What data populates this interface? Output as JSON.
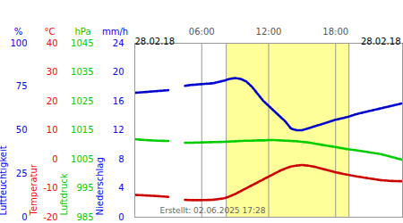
{
  "chart_data": {
    "type": "line",
    "date_labels": [
      "28.02.18",
      "28.02.18"
    ],
    "caption": "Erstellt: 02.06.2025 17:28",
    "xlim": [
      0,
      24
    ],
    "xticks": [
      {
        "value": 6,
        "label": "06:00"
      },
      {
        "value": 12,
        "label": "12:00"
      },
      {
        "value": 18,
        "label": "18:00"
      }
    ],
    "grid": "x",
    "daylight": [
      8.2,
      19.2
    ],
    "x": [
      0,
      1,
      2,
      3,
      3.6,
      4.5,
      5,
      6,
      7,
      8,
      8.5,
      9,
      9.5,
      10,
      10.5,
      11,
      11.5,
      12,
      12.5,
      13,
      13.5,
      14,
      14.5,
      15,
      15.5,
      16,
      17,
      18,
      19,
      20,
      21,
      22,
      23,
      24
    ],
    "axes": [
      {
        "axis": "y",
        "unit": "%",
        "label": "Luftfeuchtigkeit",
        "color": "#0000ff",
        "lim": [
          0,
          100
        ],
        "ticks": [
          0,
          25,
          50,
          75,
          100
        ]
      },
      {
        "axis": "y2",
        "unit": "°C",
        "label": "Temperatur",
        "color": "#ff0000",
        "lim": [
          -20,
          40
        ],
        "ticks": [
          -20,
          -10,
          0,
          10,
          20,
          30,
          40
        ]
      },
      {
        "axis": "y3",
        "unit": "hPa",
        "label": "Luftdruck",
        "color": "#00cc00",
        "lim": [
          985,
          1045
        ],
        "ticks": [
          985,
          995,
          1005,
          1015,
          1025,
          1035,
          1045
        ]
      },
      {
        "axis": "y4",
        "unit": "mm/h",
        "label": "Niederschlag",
        "color": "#0000ff",
        "lim": [
          0,
          24
        ],
        "ticks": [
          0,
          4,
          8,
          12,
          16,
          20,
          24
        ]
      }
    ],
    "series": [
      {
        "axis": "y",
        "color": "#0000cc",
        "line_style": "dotted",
        "values": [
          71.5,
          72,
          72.5,
          73,
          null,
          75.5,
          76,
          76.5,
          77,
          78.5,
          79.5,
          80,
          79.5,
          78,
          75,
          71,
          67,
          64,
          61,
          58,
          55,
          51,
          50,
          50,
          51,
          52,
          54,
          56,
          57.5,
          59.5,
          61,
          62.5,
          64,
          65.5
        ]
      },
      {
        "axis": "y2",
        "color": "#cc0000",
        "line_style": "dotted",
        "values": [
          -12.3,
          -12.5,
          -12.7,
          -13,
          null,
          -14,
          -14.1,
          -14.1,
          -14,
          -13.5,
          -12.8,
          -12,
          -11,
          -10,
          -9,
          -8,
          -7,
          -6,
          -5,
          -4,
          -3.2,
          -2.5,
          -2.2,
          -2,
          -2.2,
          -2.5,
          -3.5,
          -4.5,
          -5.3,
          -6,
          -6.6,
          -7.2,
          -7.5,
          -7.6
        ]
      },
      {
        "axis": "y3",
        "color": "#00cc00",
        "line_style": "dotted",
        "values": [
          1011.9,
          1011.6,
          1011.4,
          1011.3,
          null,
          1010.7,
          1010.7,
          1010.8,
          1010.9,
          1011,
          1011.1,
          1011.2,
          1011.3,
          1011.4,
          1011.4,
          1011.5,
          1011.5,
          1011.6,
          1011.6,
          1011.5,
          1011.4,
          1011.3,
          1011.2,
          1011,
          1010.8,
          1010.5,
          1009.8,
          1009.2,
          1008.5,
          1008,
          1007.4,
          1006.8,
          1005.8,
          1004.8
        ]
      }
    ]
  }
}
